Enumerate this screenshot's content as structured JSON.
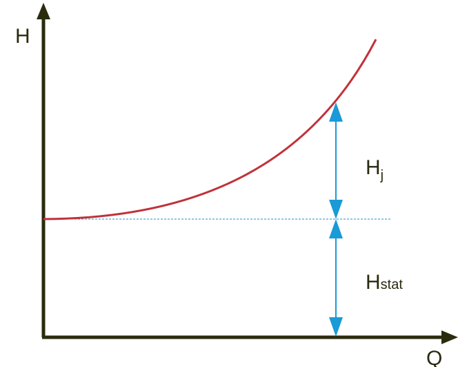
{
  "axes": {
    "y_label": "H",
    "x_label": "Q"
  },
  "annotations": [
    {
      "symbol": "H",
      "subscript": "j"
    },
    {
      "symbol": "H",
      "subscript": "stat"
    }
  ]
}
